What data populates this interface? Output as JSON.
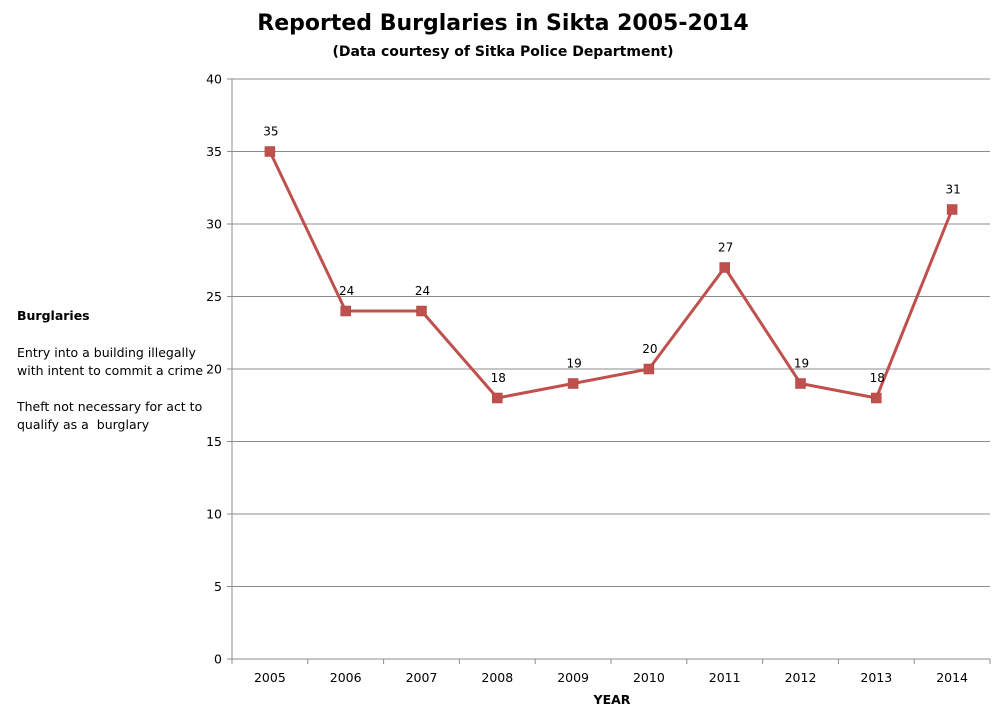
{
  "chart_data": {
    "type": "line",
    "title": "Reported Burglaries in Sikta 2005-2014",
    "subtitle": "(Data courtesy of Sitka Police Department)",
    "xlabel": "YEAR",
    "ylabel": "",
    "categories": [
      "2005",
      "2006",
      "2007",
      "2008",
      "2009",
      "2010",
      "2011",
      "2012",
      "2013",
      "2014"
    ],
    "series": [
      {
        "name": "Burglaries",
        "values": [
          35,
          24,
          24,
          18,
          19,
          20,
          27,
          19,
          18,
          31
        ],
        "color": "#C0504D"
      }
    ],
    "ylim": [
      0,
      40
    ],
    "yticks": [
      0,
      5,
      10,
      15,
      20,
      25,
      30,
      35,
      40
    ],
    "grid": true,
    "data_labels": true,
    "legend": "none",
    "annotation": {
      "heading": "Burglaries",
      "lines": [
        "Entry into a building illegally",
        "with intent to commit a crime",
        "Theft not necessary for act to",
        "qualify as a  burglary"
      ]
    }
  }
}
